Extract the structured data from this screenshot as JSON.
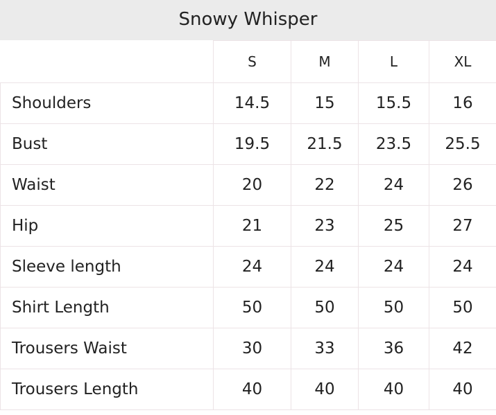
{
  "title": "Snowy Whisper",
  "headers": [
    "S",
    "M",
    "L",
    "XL"
  ],
  "rows": [
    {
      "label": "Shoulders",
      "values": [
        "14.5",
        "15",
        "15.5",
        "16"
      ]
    },
    {
      "label": "Bust",
      "values": [
        "19.5",
        "21.5",
        "23.5",
        "25.5"
      ]
    },
    {
      "label": "Waist",
      "values": [
        "20",
        "22",
        "24",
        "26"
      ]
    },
    {
      "label": "Hip",
      "values": [
        "21",
        "23",
        "25",
        "27"
      ]
    },
    {
      "label": "Sleeve length",
      "values": [
        "24",
        "24",
        "24",
        "24"
      ]
    },
    {
      "label": "Shirt Length",
      "values": [
        "50",
        "50",
        "50",
        "50"
      ]
    },
    {
      "label": "Trousers Waist",
      "values": [
        "30",
        "33",
        "36",
        "42"
      ]
    },
    {
      "label": "Trousers Length",
      "values": [
        "40",
        "40",
        "40",
        "40"
      ]
    }
  ]
}
